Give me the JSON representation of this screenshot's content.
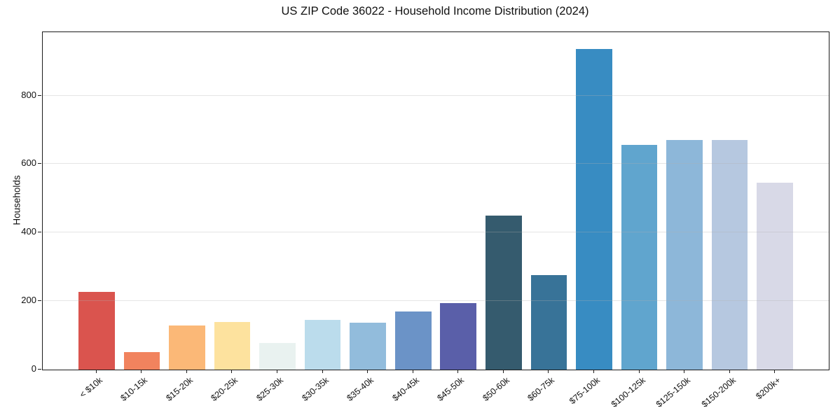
{
  "chart_data": {
    "type": "bar",
    "title": "US ZIP Code 36022 - Household Income Distribution (2024)",
    "xlabel": "",
    "ylabel": "Households",
    "categories": [
      "< $10k",
      "$10-15k",
      "$15-20k",
      "$20-25k",
      "$25-30k",
      "$30-35k",
      "$35-40k",
      "$40-45k",
      "$45-50k",
      "$50-60k",
      "$60-75k",
      "$75-100k",
      "$100-125k",
      "$125-150k",
      "$150-200k",
      "$200k+"
    ],
    "values": [
      227,
      51,
      129,
      139,
      77,
      146,
      137,
      170,
      194,
      449,
      276,
      936,
      655,
      670,
      670,
      545
    ],
    "bar_colors": [
      "#da544e",
      "#f1835e",
      "#fbb877",
      "#fde29e",
      "#e9f2f0",
      "#bbdcec",
      "#92bcdc",
      "#6b93c7",
      "#5a5fa9",
      "#355b6e",
      "#387398",
      "#388cc2",
      "#60a5ce",
      "#8db7d9",
      "#b6c8e0",
      "#d8d9e7"
    ],
    "yticks": [
      0,
      200,
      400,
      600,
      800
    ],
    "ylim": [
      0,
      985
    ],
    "grid": "horizontal",
    "legend": "none",
    "background_color": "#ffffff",
    "spine_color": "#1c1c1c",
    "grid_color": "rgba(176,176,176,0.33)"
  }
}
